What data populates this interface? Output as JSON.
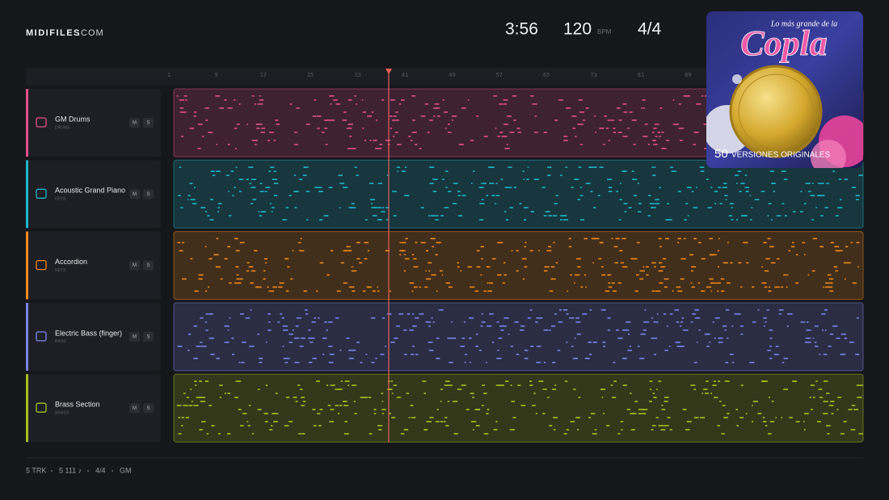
{
  "header": {
    "logo": "MIDIFILES",
    "logo_suffix": ".COM",
    "duration": "3:56",
    "tempo": "120",
    "tempo_unit": "BPM",
    "meter": "4/4"
  },
  "album": {
    "title_top": "Lo más grande de la",
    "title": "Copla",
    "badge_number": "50",
    "badge_text": "VERSIONES ORIGINALES"
  },
  "ruler": [
    1,
    9,
    17,
    25,
    33,
    41,
    49,
    57,
    65,
    73,
    81,
    89
  ],
  "tracks": [
    {
      "name": "GM Drums",
      "category": "DRUMS",
      "mute": "M",
      "solo": "S",
      "color": "#e0508a"
    },
    {
      "name": "Acoustic Grand Piano",
      "category": "KEYS",
      "mute": "M",
      "solo": "S",
      "color": "#1fb5c9"
    },
    {
      "name": "Accordion",
      "category": "KEYS",
      "mute": "M",
      "solo": "S",
      "color": "#f08a1c"
    },
    {
      "name": "Electric Bass (finger)",
      "category": "BASS",
      "mute": "M",
      "solo": "S",
      "color": "#7b86e8"
    },
    {
      "name": "Brass Section",
      "category": "BRASS",
      "mute": "M",
      "solo": "S",
      "color": "#a8c020"
    }
  ],
  "footer": {
    "tracks": "5 TRK",
    "notes": "5 111 ♪",
    "meter": "4/4",
    "standard": "GM"
  }
}
